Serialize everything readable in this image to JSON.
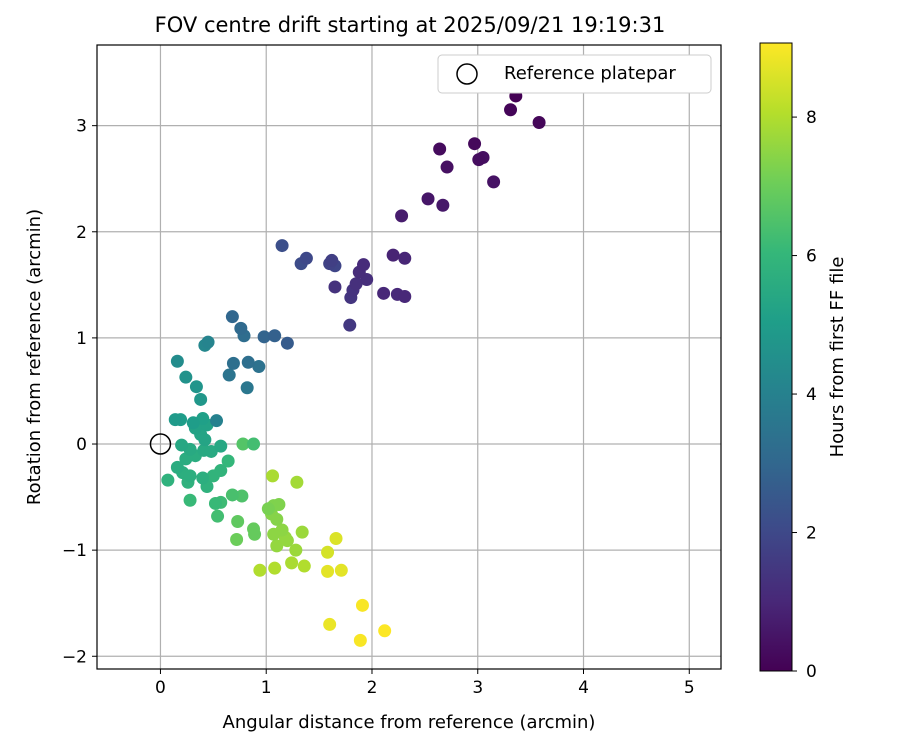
{
  "chart_data": {
    "type": "scatter",
    "title": "FOV centre drift starting at 2025/09/21 19:19:31",
    "xlabel": "Angular distance from reference (arcmin)",
    "ylabel": "Rotation from reference (arcmin)",
    "xlim": [
      -0.6,
      5.3
    ],
    "ylim": [
      -2.12,
      3.76
    ],
    "grid": true,
    "x_ticks": [
      0,
      1,
      2,
      3,
      4,
      5
    ],
    "y_ticks": [
      -2,
      -1,
      0,
      1,
      2,
      3
    ],
    "legend": {
      "position": "upper-right",
      "entries": [
        "Reference platepar"
      ]
    },
    "reference_point": {
      "x": 0,
      "y": 0,
      "label": "Reference platepar"
    },
    "colorbar": {
      "label": "Hours from first FF file",
      "range": [
        0,
        9.07
      ],
      "ticks": [
        0,
        2,
        4,
        6,
        8
      ],
      "colormap": [
        "#440154",
        "#482878",
        "#3e4989",
        "#31688e",
        "#26828e",
        "#1f9e89",
        "#35b779",
        "#6ece58",
        "#b5de2b",
        "#fde725"
      ]
    },
    "series": [
      {
        "name": "FOV centre drift",
        "color_by": "Hours from first FF file",
        "points": [
          {
            "x": 3.36,
            "y": 3.28,
            "c": 0.0
          },
          {
            "x": 3.31,
            "y": 3.15,
            "c": 0.1
          },
          {
            "x": 3.58,
            "y": 3.03,
            "c": 0.15
          },
          {
            "x": 2.97,
            "y": 2.83,
            "c": 0.2
          },
          {
            "x": 2.64,
            "y": 2.78,
            "c": 0.25
          },
          {
            "x": 3.01,
            "y": 2.68,
            "c": 0.3
          },
          {
            "x": 3.05,
            "y": 2.7,
            "c": 0.35
          },
          {
            "x": 2.71,
            "y": 2.61,
            "c": 0.4
          },
          {
            "x": 3.15,
            "y": 2.47,
            "c": 0.45
          },
          {
            "x": 2.53,
            "y": 2.31,
            "c": 0.55
          },
          {
            "x": 2.67,
            "y": 2.25,
            "c": 0.6
          },
          {
            "x": 2.28,
            "y": 2.15,
            "c": 0.7
          },
          {
            "x": 2.2,
            "y": 1.78,
            "c": 0.9
          },
          {
            "x": 2.31,
            "y": 1.75,
            "c": 0.95
          },
          {
            "x": 1.92,
            "y": 1.69,
            "c": 1.1
          },
          {
            "x": 1.88,
            "y": 1.62,
            "c": 1.15
          },
          {
            "x": 1.95,
            "y": 1.55,
            "c": 1.2
          },
          {
            "x": 1.85,
            "y": 1.51,
            "c": 1.25
          },
          {
            "x": 1.65,
            "y": 1.48,
            "c": 1.3
          },
          {
            "x": 1.82,
            "y": 1.45,
            "c": 1.35
          },
          {
            "x": 1.8,
            "y": 1.38,
            "c": 1.4
          },
          {
            "x": 2.11,
            "y": 1.42,
            "c": 1.0
          },
          {
            "x": 2.24,
            "y": 1.41,
            "c": 1.05
          },
          {
            "x": 2.31,
            "y": 1.39,
            "c": 1.0
          },
          {
            "x": 1.79,
            "y": 1.12,
            "c": 1.5
          },
          {
            "x": 1.62,
            "y": 1.73,
            "c": 1.7
          },
          {
            "x": 1.6,
            "y": 1.7,
            "c": 1.8
          },
          {
            "x": 1.65,
            "y": 1.68,
            "c": 1.9
          },
          {
            "x": 1.38,
            "y": 1.75,
            "c": 2.0
          },
          {
            "x": 1.33,
            "y": 1.7,
            "c": 2.1
          },
          {
            "x": 1.15,
            "y": 1.87,
            "c": 2.2
          },
          {
            "x": 1.2,
            "y": 0.95,
            "c": 2.6
          },
          {
            "x": 1.08,
            "y": 1.02,
            "c": 2.8
          },
          {
            "x": 0.98,
            "y": 1.01,
            "c": 2.9
          },
          {
            "x": 0.68,
            "y": 1.2,
            "c": 3.0
          },
          {
            "x": 0.76,
            "y": 1.09,
            "c": 3.1
          },
          {
            "x": 0.79,
            "y": 1.02,
            "c": 3.2
          },
          {
            "x": 0.83,
            "y": 0.77,
            "c": 3.3
          },
          {
            "x": 0.69,
            "y": 0.76,
            "c": 3.3
          },
          {
            "x": 0.93,
            "y": 0.73,
            "c": 3.4
          },
          {
            "x": 0.65,
            "y": 0.65,
            "c": 3.5
          },
          {
            "x": 0.82,
            "y": 0.53,
            "c": 3.6
          },
          {
            "x": 0.53,
            "y": 0.22,
            "c": 4.0
          },
          {
            "x": 0.45,
            "y": 0.96,
            "c": 4.1
          },
          {
            "x": 0.42,
            "y": 0.93,
            "c": 4.2
          },
          {
            "x": 0.16,
            "y": 0.78,
            "c": 4.4
          },
          {
            "x": 0.24,
            "y": 0.63,
            "c": 4.6
          },
          {
            "x": 0.34,
            "y": 0.54,
            "c": 4.7
          },
          {
            "x": 0.38,
            "y": 0.42,
            "c": 4.8
          },
          {
            "x": 0.14,
            "y": 0.23,
            "c": 4.9
          },
          {
            "x": 0.19,
            "y": 0.23,
            "c": 5.0
          },
          {
            "x": 0.31,
            "y": 0.2,
            "c": 5.0
          },
          {
            "x": 0.4,
            "y": 0.24,
            "c": 5.1
          },
          {
            "x": 0.44,
            "y": 0.18,
            "c": 5.2
          },
          {
            "x": 0.33,
            "y": 0.15,
            "c": 5.2
          },
          {
            "x": 0.38,
            "y": 0.09,
            "c": 5.3
          },
          {
            "x": 0.42,
            "y": 0.04,
            "c": 5.3
          },
          {
            "x": 0.57,
            "y": -0.02,
            "c": 5.4
          },
          {
            "x": 0.2,
            "y": -0.01,
            "c": 5.4
          },
          {
            "x": 0.28,
            "y": -0.05,
            "c": 5.5
          },
          {
            "x": 0.41,
            "y": -0.06,
            "c": 5.5
          },
          {
            "x": 0.48,
            "y": -0.07,
            "c": 5.5
          },
          {
            "x": 0.33,
            "y": -0.11,
            "c": 5.6
          },
          {
            "x": 0.24,
            "y": -0.14,
            "c": 5.6
          },
          {
            "x": 0.16,
            "y": -0.22,
            "c": 5.6
          },
          {
            "x": 0.21,
            "y": -0.27,
            "c": 5.7
          },
          {
            "x": 0.28,
            "y": -0.3,
            "c": 5.7
          },
          {
            "x": 0.4,
            "y": -0.32,
            "c": 5.7
          },
          {
            "x": 0.07,
            "y": -0.34,
            "c": 5.8
          },
          {
            "x": 0.26,
            "y": -0.36,
            "c": 5.8
          },
          {
            "x": 0.44,
            "y": -0.4,
            "c": 5.8
          },
          {
            "x": 0.5,
            "y": -0.3,
            "c": 5.9
          },
          {
            "x": 0.57,
            "y": -0.25,
            "c": 5.9
          },
          {
            "x": 0.64,
            "y": -0.16,
            "c": 6.0
          },
          {
            "x": 0.28,
            "y": -0.53,
            "c": 6.1
          },
          {
            "x": 0.52,
            "y": -0.56,
            "c": 6.1
          },
          {
            "x": 0.57,
            "y": -0.55,
            "c": 6.2
          },
          {
            "x": 0.54,
            "y": -0.68,
            "c": 6.3
          },
          {
            "x": 0.68,
            "y": -0.48,
            "c": 6.4
          },
          {
            "x": 0.77,
            "y": -0.49,
            "c": 6.5
          },
          {
            "x": 0.78,
            "y": 0.0,
            "c": 6.6
          },
          {
            "x": 0.88,
            "y": 0.0,
            "c": 6.3
          },
          {
            "x": 0.73,
            "y": -0.73,
            "c": 6.8
          },
          {
            "x": 0.88,
            "y": -0.8,
            "c": 6.9
          },
          {
            "x": 0.89,
            "y": -0.85,
            "c": 6.9
          },
          {
            "x": 0.72,
            "y": -0.9,
            "c": 7.0
          },
          {
            "x": 1.02,
            "y": -0.61,
            "c": 7.2
          },
          {
            "x": 1.07,
            "y": -0.58,
            "c": 7.3
          },
          {
            "x": 1.12,
            "y": -0.57,
            "c": 7.3
          },
          {
            "x": 1.05,
            "y": -0.66,
            "c": 7.4
          },
          {
            "x": 1.1,
            "y": -0.71,
            "c": 7.4
          },
          {
            "x": 1.15,
            "y": -0.81,
            "c": 7.5
          },
          {
            "x": 1.07,
            "y": -0.85,
            "c": 7.5
          },
          {
            "x": 1.18,
            "y": -0.88,
            "c": 7.6
          },
          {
            "x": 1.2,
            "y": -0.91,
            "c": 7.6
          },
          {
            "x": 1.1,
            "y": -0.96,
            "c": 7.6
          },
          {
            "x": 1.28,
            "y": -1.0,
            "c": 7.7
          },
          {
            "x": 1.34,
            "y": -0.83,
            "c": 7.7
          },
          {
            "x": 1.29,
            "y": -0.36,
            "c": 7.8
          },
          {
            "x": 1.06,
            "y": -0.3,
            "c": 7.9
          },
          {
            "x": 1.24,
            "y": -1.12,
            "c": 7.9
          },
          {
            "x": 1.36,
            "y": -1.15,
            "c": 8.0
          },
          {
            "x": 0.94,
            "y": -1.19,
            "c": 8.0
          },
          {
            "x": 1.08,
            "y": -1.17,
            "c": 8.0
          },
          {
            "x": 1.58,
            "y": -1.02,
            "c": 8.5
          },
          {
            "x": 1.66,
            "y": -0.89,
            "c": 8.6
          },
          {
            "x": 1.58,
            "y": -1.2,
            "c": 8.7
          },
          {
            "x": 1.71,
            "y": -1.19,
            "c": 8.7
          },
          {
            "x": 1.6,
            "y": -1.7,
            "c": 8.8
          },
          {
            "x": 1.91,
            "y": -1.52,
            "c": 9.0
          },
          {
            "x": 1.89,
            "y": -1.85,
            "c": 9.0
          },
          {
            "x": 2.12,
            "y": -1.76,
            "c": 9.05
          }
        ]
      }
    ]
  }
}
